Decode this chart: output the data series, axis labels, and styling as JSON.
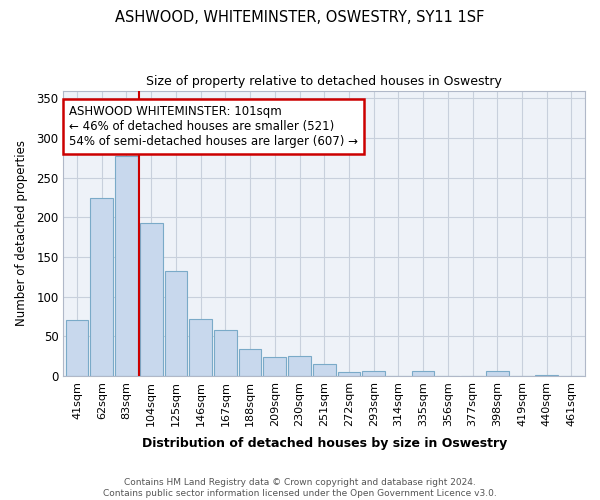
{
  "title": "ASHWOOD, WHITEMINSTER, OSWESTRY, SY11 1SF",
  "subtitle": "Size of property relative to detached houses in Oswestry",
  "xlabel": "Distribution of detached houses by size in Oswestry",
  "ylabel": "Number of detached properties",
  "bar_color": "#c8d8ed",
  "bar_edge_color": "#7aaac8",
  "categories": [
    "41sqm",
    "62sqm",
    "83sqm",
    "104sqm",
    "125sqm",
    "146sqm",
    "167sqm",
    "188sqm",
    "209sqm",
    "230sqm",
    "251sqm",
    "272sqm",
    "293sqm",
    "314sqm",
    "335sqm",
    "356sqm",
    "377sqm",
    "398sqm",
    "419sqm",
    "440sqm",
    "461sqm"
  ],
  "values": [
    70,
    224,
    277,
    193,
    132,
    72,
    58,
    34,
    24,
    25,
    15,
    5,
    6,
    0,
    6,
    0,
    0,
    6,
    0,
    1,
    0
  ],
  "ylim": [
    0,
    360
  ],
  "yticks": [
    0,
    50,
    100,
    150,
    200,
    250,
    300,
    350
  ],
  "red_line_index": 3,
  "annotation_text": "ASHWOOD WHITEMINSTER: 101sqm\n← 46% of detached houses are smaller (521)\n54% of semi-detached houses are larger (607) →",
  "annotation_box_color": "#ffffff",
  "annotation_box_edge": "#cc0000",
  "footer_line1": "Contains HM Land Registry data © Crown copyright and database right 2024.",
  "footer_line2": "Contains public sector information licensed under the Open Government Licence v3.0.",
  "background_color": "#ffffff",
  "plot_bg_color": "#eef2f8",
  "grid_color": "#c8d0dc"
}
